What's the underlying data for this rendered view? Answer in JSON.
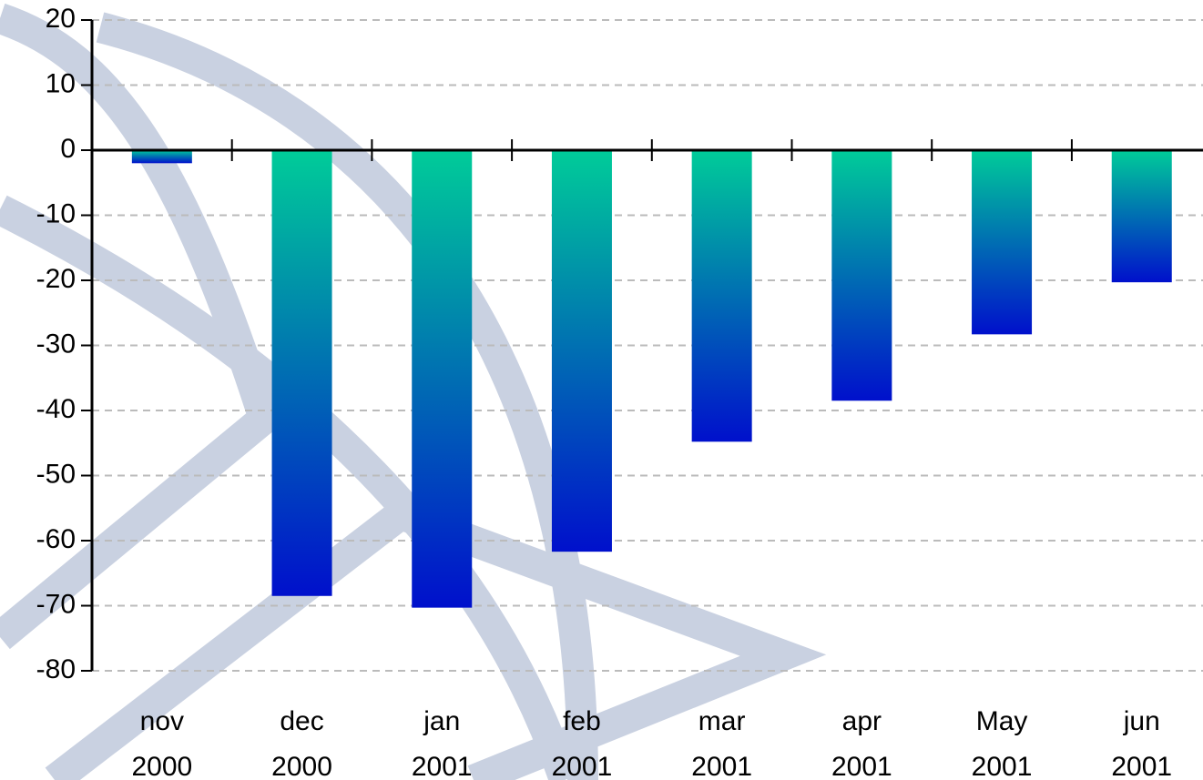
{
  "chart_data": {
    "type": "bar",
    "categories": [
      "nov 2000",
      "dec 2000",
      "jan 2001",
      "feb 2001",
      "mar 2001",
      "apr 2001",
      "May 2001",
      "jun 2001"
    ],
    "values": [
      -2,
      -68.5,
      -70.3,
      -61.7,
      -44.8,
      -38.5,
      -28.3,
      -20.3
    ],
    "gradient": [
      "#00cc99",
      "#0010cc"
    ],
    "ylim": [
      -80,
      20
    ],
    "yticks": [
      -80,
      -70,
      -60,
      -50,
      -40,
      -30,
      -20,
      -10,
      0,
      10,
      20
    ],
    "grid": true
  }
}
